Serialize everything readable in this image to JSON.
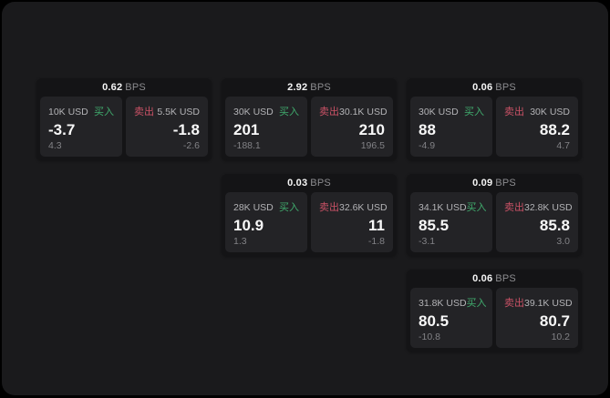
{
  "colors": {
    "frame": "#1a1a1c",
    "card": "#141416",
    "tile": "#232326",
    "buy": "#40ab6d",
    "sell": "#ca5266"
  },
  "cards": [
    {
      "bps": "0.62",
      "unit": "BPS",
      "buy": {
        "label": "买入",
        "amount": "10K USD",
        "price": "-3.7",
        "change": "4.3"
      },
      "sell": {
        "label": "卖出",
        "amount": "5.5K USD",
        "price": "-1.8",
        "change": "-2.6"
      }
    },
    {
      "bps": "2.92",
      "unit": "BPS",
      "buy": {
        "label": "买入",
        "amount": "30K USD",
        "price": "201",
        "change": "-188.1"
      },
      "sell": {
        "label": "卖出",
        "amount": "30.1K USD",
        "price": "210",
        "change": "196.5"
      }
    },
    {
      "bps": "0.06",
      "unit": "BPS",
      "buy": {
        "label": "买入",
        "amount": "30K USD",
        "price": "88",
        "change": "-4.9"
      },
      "sell": {
        "label": "卖出",
        "amount": "30K USD",
        "price": "88.2",
        "change": "4.7"
      }
    },
    {
      "bps": "0.03",
      "unit": "BPS",
      "buy": {
        "label": "买入",
        "amount": "28K USD",
        "price": "10.9",
        "change": "1.3"
      },
      "sell": {
        "label": "卖出",
        "amount": "32.6K USD",
        "price": "11",
        "change": "-1.8"
      }
    },
    {
      "bps": "0.09",
      "unit": "BPS",
      "buy": {
        "label": "买入",
        "amount": "34.1K USD",
        "price": "85.5",
        "change": "-3.1"
      },
      "sell": {
        "label": "卖出",
        "amount": "32.8K USD",
        "price": "85.8",
        "change": "3.0"
      }
    },
    {
      "bps": "0.06",
      "unit": "BPS",
      "buy": {
        "label": "买入",
        "amount": "31.8K USD",
        "price": "80.5",
        "change": "-10.8"
      },
      "sell": {
        "label": "卖出",
        "amount": "39.1K USD",
        "price": "80.7",
        "change": "10.2"
      }
    }
  ]
}
